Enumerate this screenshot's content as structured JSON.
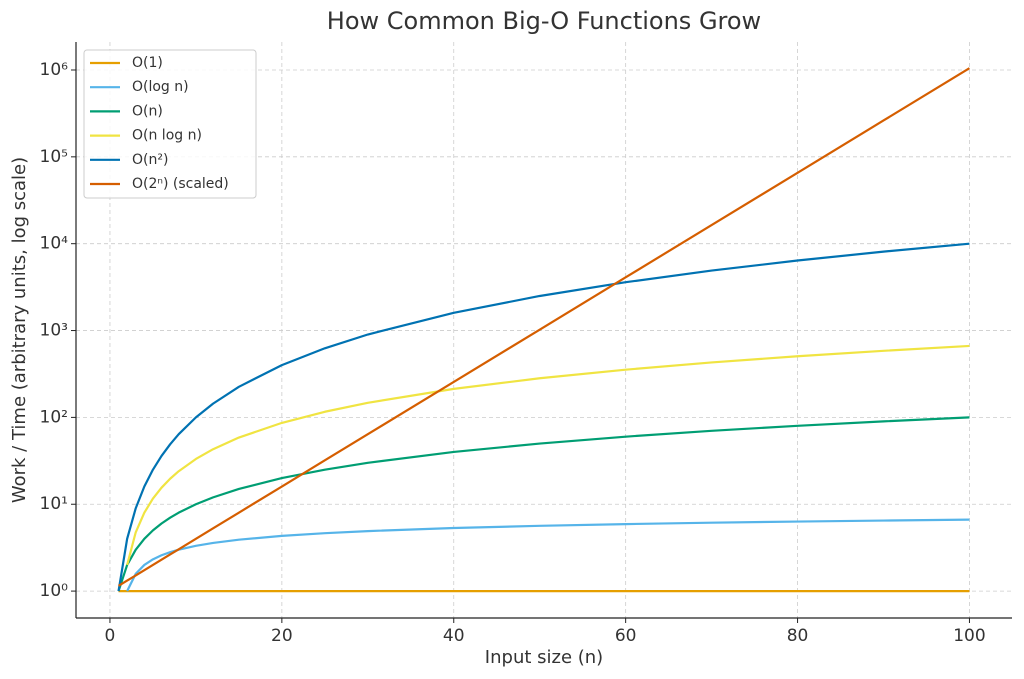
{
  "chart_data": {
    "type": "line",
    "title": "How Common Big-O Functions Grow",
    "x_label": "Input size (n)",
    "y_label": "Work / Time (arbitrary units, log scale)",
    "x": [
      1,
      2,
      3,
      4,
      5,
      6,
      7,
      8,
      10,
      12,
      15,
      20,
      25,
      30,
      40,
      50,
      60,
      70,
      80,
      90,
      100
    ],
    "series": [
      {
        "name": "O(1)",
        "color": "#E69F00",
        "values": [
          1,
          1,
          1,
          1,
          1,
          1,
          1,
          1,
          1,
          1,
          1,
          1,
          1,
          1,
          1,
          1,
          1,
          1,
          1,
          1,
          1
        ]
      },
      {
        "name": "O(log n)",
        "color": "#56B4E9",
        "values": [
          null,
          1,
          1.585,
          2,
          2.322,
          2.585,
          2.807,
          3,
          3.322,
          3.585,
          3.907,
          4.322,
          4.644,
          4.907,
          5.322,
          5.644,
          5.907,
          6.129,
          6.322,
          6.492,
          6.644
        ]
      },
      {
        "name": "O(n)",
        "color": "#009E73",
        "values": [
          1,
          2,
          3,
          4,
          5,
          6,
          7,
          8,
          10,
          12,
          15,
          20,
          25,
          30,
          40,
          50,
          60,
          70,
          80,
          90,
          100
        ]
      },
      {
        "name": "O(n log n)",
        "color": "#F0E442",
        "values": [
          null,
          2,
          4.755,
          8,
          11.61,
          15.51,
          19.65,
          24,
          33.22,
          43.02,
          58.6,
          86.44,
          116.1,
          147.2,
          212.9,
          282.2,
          354.4,
          429.0,
          505.8,
          584.3,
          664.4
        ]
      },
      {
        "name": "O(n²)",
        "color": "#0072B2",
        "values": [
          1,
          4,
          9,
          16,
          25,
          36,
          49,
          64,
          100,
          144,
          225,
          400,
          625,
          900,
          1600,
          2500,
          3600,
          4900,
          6400,
          8100,
          10000
        ]
      },
      {
        "name": "O(2ⁿ) (scaled)",
        "color": "#D55E00",
        "values": [
          1.149,
          1.32,
          1.516,
          1.741,
          2,
          2.297,
          2.639,
          3.031,
          4,
          5.278,
          8,
          16,
          32,
          64,
          256,
          1024,
          4096,
          16384,
          65536,
          262144,
          1048576
        ]
      }
    ],
    "xlim": [
      -3.95,
      104.95
    ],
    "xticks": [
      0,
      20,
      40,
      60,
      80,
      100
    ],
    "ylim": [
      0.49,
      2100000
    ],
    "yticks": [
      {
        "value": 1,
        "label": "10⁰"
      },
      {
        "value": 10,
        "label": "10¹"
      },
      {
        "value": 100,
        "label": "10²"
      },
      {
        "value": 1000,
        "label": "10³"
      },
      {
        "value": 10000,
        "label": "10⁴"
      },
      {
        "value": 100000,
        "label": "10⁵"
      },
      {
        "value": 1000000,
        "label": "10⁶"
      }
    ],
    "y_scale": "log",
    "grid": true,
    "legend_position": "upper-left"
  }
}
